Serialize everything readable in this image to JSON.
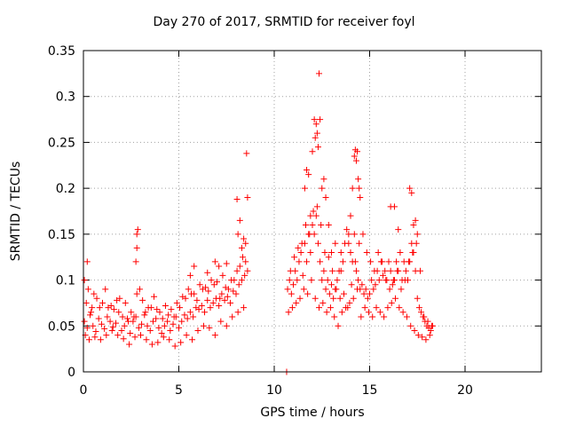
{
  "chart_data": {
    "type": "scatter",
    "title": "Day 270 of 2017, SRMTID for receiver foyl",
    "xlabel": "GPS time / hours",
    "ylabel": "SRMTID / TECUs",
    "xlim": [
      0,
      24
    ],
    "ylim": [
      0,
      0.35
    ],
    "xticks": [
      0,
      5,
      10,
      15,
      20
    ],
    "xtick_labels": [
      "0",
      "5",
      "10",
      "15",
      "20"
    ],
    "yticks": [
      0,
      0.05,
      0.1,
      0.15,
      0.2,
      0.25,
      0.3,
      0.35
    ],
    "ytick_labels": [
      "0",
      "0.05",
      "0.1",
      "0.15",
      "0.2",
      "0.25",
      "0.3",
      "0.35"
    ],
    "grid": true,
    "grid_style": "dotted",
    "legend": "none",
    "marker": "plus",
    "color": "#ff0000",
    "series": [
      {
        "x": [
          0.05,
          0.2,
          0.35,
          0.5,
          0.65,
          0.8,
          0.95,
          1.1,
          1.25,
          1.4,
          1.55,
          1.7,
          1.85,
          2.0,
          2.15,
          2.3,
          2.45,
          2.6,
          2.75,
          2.9,
          3.05,
          3.2,
          3.35,
          3.5,
          3.65,
          3.8,
          3.95,
          4.1,
          4.25,
          4.4,
          4.55,
          4.7,
          4.85,
          5.0,
          5.15,
          5.3,
          5.45,
          5.6,
          5.75,
          5.9,
          6.05,
          6.2,
          6.35,
          6.5,
          6.65,
          6.8,
          6.95,
          7.1,
          7.25,
          7.4,
          7.55,
          7.7,
          7.85,
          8.0,
          8.15,
          8.3,
          8.45,
          8.6,
          0.1,
          0.3,
          0.45,
          0.6,
          0.9,
          1.2,
          1.5,
          1.8,
          2.1,
          2.4,
          2.7,
          3.0,
          3.3,
          3.6,
          3.9,
          4.2,
          4.5,
          4.8,
          5.1,
          5.4,
          5.7,
          6.0,
          6.3,
          6.6,
          6.9,
          7.2,
          7.5,
          7.8,
          8.1,
          8.4,
          0.15,
          0.4,
          0.7,
          1.0,
          1.3,
          1.6,
          1.9,
          2.2,
          2.5,
          2.8,
          3.1,
          3.4,
          3.7,
          4.0,
          4.3,
          4.6,
          4.9,
          5.2,
          5.5,
          5.8,
          6.1,
          6.4,
          6.7,
          7.0,
          7.3,
          7.6,
          7.9,
          8.2,
          8.5,
          0.25,
          0.55,
          0.85,
          1.15,
          1.45,
          1.75,
          2.05,
          2.35,
          2.65,
          2.95,
          3.25,
          3.55,
          3.85,
          4.15,
          4.45,
          4.75,
          5.05,
          5.35,
          5.65,
          5.95,
          6.25,
          6.55,
          6.85,
          7.15,
          7.45,
          7.75,
          8.05,
          8.35,
          0.2,
          0.05,
          2.75,
          2.8,
          2.85,
          2.8,
          8.1,
          8.2,
          8.3,
          8.4,
          8.5,
          8.55,
          5.6,
          5.8,
          6.5,
          6.9,
          7.1,
          7.5,
          8.6,
          8.05,
          10.7,
          10.8,
          10.9,
          11.0,
          11.1,
          11.2,
          11.3,
          11.4,
          11.5,
          11.6,
          11.7,
          11.8,
          11.9,
          12.0,
          12.1,
          12.2,
          12.3,
          12.4,
          12.5,
          12.6,
          12.7,
          12.8,
          12.9,
          13.0,
          13.1,
          13.2,
          13.3,
          13.4,
          13.5,
          13.6,
          13.7,
          13.8,
          13.9,
          14.0,
          14.1,
          14.2,
          14.3,
          14.4,
          14.5,
          14.6,
          14.7,
          14.8,
          14.9,
          15.0,
          15.1,
          15.2,
          15.3,
          15.4,
          15.5,
          15.6,
          15.7,
          15.8,
          15.9,
          16.0,
          16.1,
          16.2,
          16.3,
          16.4,
          16.5,
          16.6,
          16.7,
          16.8,
          16.9,
          17.0,
          17.1,
          17.2,
          17.3,
          17.4,
          17.5,
          17.6,
          17.7,
          17.8,
          17.9,
          18.0,
          18.1,
          18.2,
          18.3,
          10.75,
          10.95,
          11.15,
          11.35,
          11.55,
          11.75,
          11.95,
          12.15,
          12.35,
          12.55,
          12.75,
          12.95,
          13.15,
          13.35,
          13.55,
          13.75,
          13.95,
          14.15,
          14.35,
          14.55,
          14.75,
          14.95,
          15.15,
          15.35,
          15.55,
          15.75,
          15.95,
          16.15,
          16.35,
          16.55,
          16.75,
          16.95,
          17.15,
          17.35,
          17.55,
          17.75,
          17.95,
          18.15,
          10.85,
          11.05,
          11.25,
          11.45,
          11.65,
          11.85,
          12.05,
          12.25,
          12.45,
          12.65,
          12.85,
          13.05,
          13.25,
          13.45,
          13.65,
          13.85,
          14.05,
          14.25,
          14.45,
          14.65,
          14.85,
          15.05,
          15.25,
          15.45,
          15.65,
          15.85,
          16.05,
          16.25,
          16.45,
          16.65,
          16.85,
          17.05,
          17.25,
          17.45,
          17.65,
          17.85,
          18.05,
          18.25,
          11.6,
          11.7,
          11.8,
          11.9,
          12.0,
          12.1,
          12.15,
          12.2,
          12.25,
          12.3,
          12.35,
          12.4,
          12.5,
          12.6,
          12.7,
          12.85,
          13.0,
          13.2,
          13.5,
          13.9,
          14.0,
          14.1,
          14.2,
          14.25,
          14.3,
          14.35,
          14.4,
          14.45,
          14.5,
          16.1,
          16.3,
          16.5,
          17.1,
          17.2,
          17.3,
          17.4,
          17.5,
          10.65
        ],
        "y": [
          0.055,
          0.048,
          0.062,
          0.05,
          0.044,
          0.058,
          0.052,
          0.047,
          0.06,
          0.055,
          0.049,
          0.053,
          0.065,
          0.045,
          0.05,
          0.058,
          0.042,
          0.055,
          0.06,
          0.048,
          0.052,
          0.062,
          0.05,
          0.045,
          0.055,
          0.058,
          0.048,
          0.042,
          0.05,
          0.055,
          0.045,
          0.052,
          0.06,
          0.048,
          0.055,
          0.062,
          0.058,
          0.065,
          0.06,
          0.07,
          0.068,
          0.072,
          0.065,
          0.078,
          0.07,
          0.075,
          0.08,
          0.072,
          0.085,
          0.078,
          0.082,
          0.075,
          0.088,
          0.085,
          0.095,
          0.1,
          0.105,
          0.11,
          0.04,
          0.035,
          0.07,
          0.038,
          0.035,
          0.04,
          0.045,
          0.04,
          0.036,
          0.03,
          0.038,
          0.04,
          0.035,
          0.03,
          0.032,
          0.038,
          0.035,
          0.028,
          0.032,
          0.04,
          0.035,
          0.045,
          0.05,
          0.048,
          0.04,
          0.055,
          0.05,
          0.06,
          0.065,
          0.07,
          0.075,
          0.065,
          0.08,
          0.075,
          0.07,
          0.068,
          0.08,
          0.075,
          0.065,
          0.085,
          0.078,
          0.07,
          0.082,
          0.065,
          0.072,
          0.068,
          0.075,
          0.082,
          0.09,
          0.085,
          0.095,
          0.092,
          0.1,
          0.098,
          0.105,
          0.09,
          0.1,
          0.115,
          0.12,
          0.09,
          0.085,
          0.07,
          0.09,
          0.072,
          0.078,
          0.06,
          0.055,
          0.06,
          0.09,
          0.065,
          0.07,
          0.068,
          0.058,
          0.062,
          0.06,
          0.07,
          0.08,
          0.085,
          0.078,
          0.09,
          0.088,
          0.095,
          0.08,
          0.092,
          0.1,
          0.11,
          0.125,
          0.12,
          0.1,
          0.12,
          0.135,
          0.155,
          0.15,
          0.15,
          0.165,
          0.135,
          0.145,
          0.14,
          0.238,
          0.105,
          0.115,
          0.108,
          0.12,
          0.115,
          0.118,
          0.19,
          0.188,
          0.09,
          0.1,
          0.085,
          0.095,
          0.11,
          0.1,
          0.12,
          0.13,
          0.105,
          0.14,
          0.12,
          0.15,
          0.13,
          0.16,
          0.15,
          0.17,
          0.14,
          0.12,
          0.1,
          0.11,
          0.09,
          0.1,
          0.085,
          0.095,
          0.08,
          0.09,
          0.1,
          0.11,
          0.13,
          0.12,
          0.14,
          0.155,
          0.14,
          0.13,
          0.12,
          0.15,
          0.11,
          0.1,
          0.09,
          0.095,
          0.085,
          0.09,
          0.08,
          0.085,
          0.1,
          0.09,
          0.095,
          0.11,
          0.1,
          0.12,
          0.105,
          0.11,
          0.1,
          0.12,
          0.11,
          0.095,
          0.1,
          0.12,
          0.11,
          0.13,
          0.1,
          0.12,
          0.11,
          0.1,
          0.12,
          0.14,
          0.13,
          0.11,
          0.08,
          0.07,
          0.065,
          0.06,
          0.055,
          0.05,
          0.048,
          0.045,
          0.05,
          0.065,
          0.07,
          0.075,
          0.08,
          0.09,
          0.085,
          0.1,
          0.08,
          0.07,
          0.075,
          0.065,
          0.07,
          0.06,
          0.05,
          0.065,
          0.07,
          0.075,
          0.08,
          0.09,
          0.06,
          0.07,
          0.065,
          0.06,
          0.07,
          0.065,
          0.06,
          0.07,
          0.075,
          0.08,
          0.07,
          0.065,
          0.06,
          0.05,
          0.045,
          0.04,
          0.038,
          0.035,
          0.04,
          0.11,
          0.125,
          0.135,
          0.14,
          0.16,
          0.15,
          0.175,
          0.18,
          0.16,
          0.13,
          0.125,
          0.11,
          0.09,
          0.08,
          0.085,
          0.07,
          0.095,
          0.12,
          0.14,
          0.15,
          0.13,
          0.12,
          0.11,
          0.13,
          0.12,
          0.1,
          0.09,
          0.1,
          0.11,
          0.09,
          0.1,
          0.12,
          0.13,
          0.14,
          0.11,
          0.06,
          0.055,
          0.05,
          0.2,
          0.22,
          0.215,
          0.17,
          0.24,
          0.275,
          0.255,
          0.27,
          0.26,
          0.245,
          0.325,
          0.275,
          0.2,
          0.21,
          0.19,
          0.16,
          0.13,
          0.14,
          0.11,
          0.15,
          0.17,
          0.2,
          0.235,
          0.242,
          0.23,
          0.24,
          0.21,
          0.2,
          0.19,
          0.18,
          0.18,
          0.155,
          0.2,
          0.195,
          0.16,
          0.165,
          0.15,
          0.0
        ]
      }
    ]
  }
}
